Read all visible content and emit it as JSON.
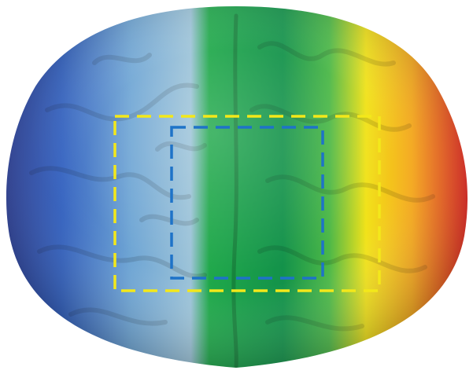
{
  "image": {
    "subject": "brain-stress-ball",
    "background_color": "#ffffff",
    "gradient_colors": [
      "#2b3f9a",
      "#2f5fc0",
      "#6ea5d4",
      "#9cc3d8",
      "#1fa84a",
      "#13924a",
      "#4cb848",
      "#f1e21a",
      "#f6a81b",
      "#e3241e"
    ]
  },
  "overlays": {
    "outer_box": {
      "color": "#f3e81a",
      "style": "dashed"
    },
    "inner_box": {
      "color": "#1e73c8",
      "style": "dashed"
    }
  }
}
